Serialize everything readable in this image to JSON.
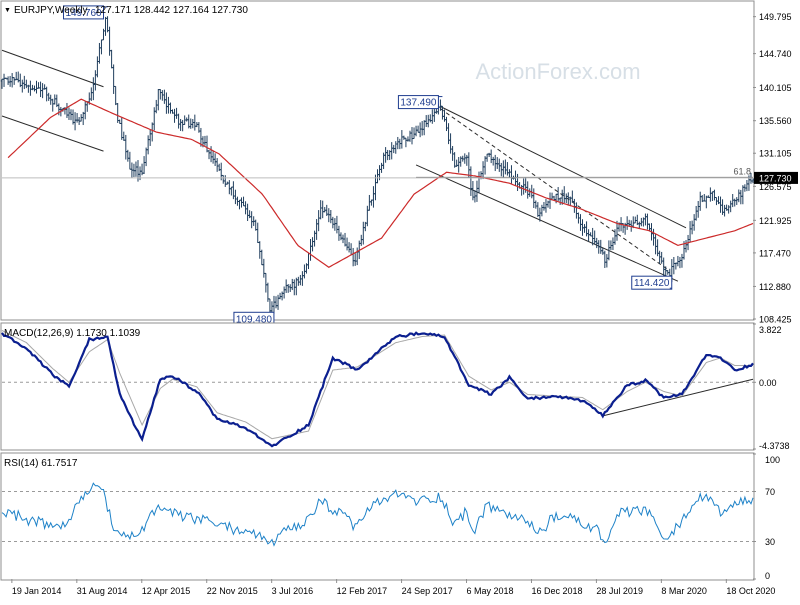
{
  "header": {
    "symbol": "EURJPY,Weekly",
    "ohlc": "127.171 128.442 127.164 127.730",
    "collapse_glyph": "▼"
  },
  "watermark": "ActionForex.com",
  "colors": {
    "price": "#1f3d5c",
    "ma": "#cc2a2a",
    "macd": "#0b1f8f",
    "signal": "#a8a8a8",
    "rsi": "#1e82c8",
    "frame": "#8f8f8f",
    "trend": "#2a2a2a",
    "fib": "#6f6f6f",
    "last_price_bg": "#000000",
    "last_price_text": "#ffffff"
  },
  "chart_data": [
    {
      "type": "candlestick",
      "title": "EURJPY,Weekly",
      "ylim": [
        108.425,
        151.8
      ],
      "y_ticks": [
        "149.795",
        "144.740",
        "140.105",
        "135.560",
        "131.105",
        "126.575",
        "121.925",
        "117.470",
        "112.880",
        "108.425"
      ],
      "last_price": "127.730",
      "price_anchors": [
        [
          "2014-01-06",
          141.0
        ],
        [
          "2014-01-20",
          141.5
        ],
        [
          "2014-03-03",
          140.5
        ],
        [
          "2014-04-28",
          140.0
        ],
        [
          "2014-06-23",
          137.8
        ],
        [
          "2014-08-31",
          135.2
        ],
        [
          "2014-10-20",
          139.0
        ],
        [
          "2014-12-08",
          149.76
        ],
        [
          "2015-01-19",
          136.0
        ],
        [
          "2015-03-02",
          129.0
        ],
        [
          "2015-04-12",
          128.5
        ],
        [
          "2015-06-08",
          139.5
        ],
        [
          "2015-08-17",
          135.5
        ],
        [
          "2015-10-19",
          135.0
        ],
        [
          "2015-11-22",
          131.5
        ],
        [
          "2016-01-11",
          128.0
        ],
        [
          "2016-03-14",
          124.5
        ],
        [
          "2016-05-09",
          121.0
        ],
        [
          "2016-06-27",
          109.48
        ],
        [
          "2016-08-22",
          112.5
        ],
        [
          "2016-10-17",
          114.0
        ],
        [
          "2016-12-19",
          123.5
        ],
        [
          "2017-02-12",
          121.0
        ],
        [
          "2017-04-17",
          116.0
        ],
        [
          "2017-06-05",
          124.0
        ],
        [
          "2017-07-24",
          130.5
        ],
        [
          "2017-09-24",
          133.0
        ],
        [
          "2017-11-13",
          133.8
        ],
        [
          "2018-02-05",
          137.49
        ],
        [
          "2018-03-26",
          129.5
        ],
        [
          "2018-05-06",
          130.5
        ],
        [
          "2018-05-28",
          124.8
        ],
        [
          "2018-07-16",
          131.0
        ],
        [
          "2018-09-10",
          129.0
        ],
        [
          "2018-10-29",
          127.0
        ],
        [
          "2018-12-16",
          125.5
        ],
        [
          "2019-01-07",
          122.5
        ],
        [
          "2019-02-25",
          125.0
        ],
        [
          "2019-04-22",
          125.5
        ],
        [
          "2019-06-10",
          121.0
        ],
        [
          "2019-07-28",
          119.0
        ],
        [
          "2019-08-26",
          116.5
        ],
        [
          "2019-10-14",
          121.0
        ],
        [
          "2019-12-16",
          121.5
        ],
        [
          "2020-01-13",
          122.0
        ],
        [
          "2020-03-08",
          116.2
        ],
        [
          "2020-03-30",
          114.42
        ],
        [
          "2020-05-18",
          117.0
        ],
        [
          "2020-06-15",
          120.5
        ],
        [
          "2020-07-20",
          124.8
        ],
        [
          "2020-08-31",
          125.5
        ],
        [
          "2020-09-28",
          123.5
        ],
        [
          "2020-10-18",
          123.2
        ],
        [
          "2020-11-16",
          124.5
        ],
        [
          "2020-12-21",
          126.5
        ],
        [
          "2021-01-18",
          127.73
        ]
      ],
      "moving_average_anchors": [
        [
          "2014-01-06",
          130.5
        ],
        [
          "2014-06-01",
          136.0
        ],
        [
          "2014-09-15",
          138.5
        ],
        [
          "2015-01-05",
          136.5
        ],
        [
          "2015-06-01",
          134.0
        ],
        [
          "2015-10-01",
          133.0
        ],
        [
          "2016-01-04",
          131.0
        ],
        [
          "2016-06-01",
          125.5
        ],
        [
          "2016-10-01",
          118.5
        ],
        [
          "2017-01-16",
          115.5
        ],
        [
          "2017-04-17",
          117.5
        ],
        [
          "2017-07-17",
          119.5
        ],
        [
          "2017-11-06",
          125.5
        ],
        [
          "2018-02-26",
          128.5
        ],
        [
          "2018-06-04",
          128.0
        ],
        [
          "2018-10-01",
          127.0
        ],
        [
          "2019-02-04",
          125.0
        ],
        [
          "2019-06-03",
          123.5
        ],
        [
          "2019-10-07",
          121.5
        ],
        [
          "2020-01-27",
          120.5
        ],
        [
          "2020-05-04",
          118.5
        ],
        [
          "2020-08-10",
          119.5
        ],
        [
          "2020-11-16",
          120.5
        ],
        [
          "2021-01-18",
          121.5
        ]
      ],
      "annotations": [
        {
          "label": "149.760",
          "date": "2014-12-08",
          "value": 149.76,
          "anchor": "high"
        },
        {
          "label": "109.480",
          "date": "2016-06-27",
          "value": 109.48,
          "anchor": "low"
        },
        {
          "label": "137.490",
          "date": "2018-02-05",
          "value": 137.49,
          "anchor": "high"
        },
        {
          "label": "114.420",
          "date": "2020-03-30",
          "value": 114.42,
          "anchor": "low"
        }
      ],
      "fib_level": {
        "label": "61.8",
        "value": 127.8
      },
      "trendlines": [
        {
          "style": "solid",
          "from": [
            "2013-12-16",
            145.2
          ],
          "to": [
            "2014-12-01",
            140.2
          ]
        },
        {
          "style": "solid",
          "from": [
            "2013-12-16",
            136.2
          ],
          "to": [
            "2014-12-01",
            131.4
          ]
        },
        {
          "style": "solid",
          "from": [
            "2018-02-05",
            137.5
          ],
          "to": [
            "2020-06-01",
            120.9
          ]
        },
        {
          "style": "solid",
          "from": [
            "2017-11-13",
            129.5
          ],
          "to": [
            "2020-05-04",
            113.6
          ]
        },
        {
          "style": "dashed",
          "from": [
            "2018-02-05",
            137.2
          ],
          "to": [
            "2020-03-30",
            115.2
          ]
        }
      ],
      "x_tick_labels": [
        {
          "label": "19 Jan 2014",
          "date": "2014-01-19"
        },
        {
          "label": "31 Aug 2014",
          "date": "2014-08-31"
        },
        {
          "label": "12 Apr 2015",
          "date": "2015-04-12"
        },
        {
          "label": "22 Nov 2015",
          "date": "2015-11-22"
        },
        {
          "label": "3 Jul 2016",
          "date": "2016-07-03"
        },
        {
          "label": "12 Feb 2017",
          "date": "2017-02-12"
        },
        {
          "label": "24 Sep 2017",
          "date": "2017-09-24"
        },
        {
          "label": "6 May 2018",
          "date": "2018-05-06"
        },
        {
          "label": "16 Dec 2018",
          "date": "2018-12-16"
        },
        {
          "label": "28 Jul 2019",
          "date": "2019-07-28"
        },
        {
          "label": "8 Mar 2020",
          "date": "2020-03-08"
        },
        {
          "label": "18 Oct 2020",
          "date": "2020-10-18"
        }
      ],
      "xlim": [
        "2013-12-16",
        "2021-01-18"
      ]
    },
    {
      "type": "line",
      "title": "MACD(12,26,9) 1.1730 1.1039",
      "ylim": [
        -4.3738,
        3.822
      ],
      "y_ticks": [
        {
          "label": "3.822",
          "value": 3.822
        },
        {
          "label": "0.00",
          "value": 0.0
        },
        {
          "label": "-4.3738",
          "value": -4.3738
        }
      ],
      "macd_anchors": [
        [
          "2013-12-16",
          3.2
        ],
        [
          "2014-03-10",
          2.2
        ],
        [
          "2014-06-09",
          0.5
        ],
        [
          "2014-08-04",
          -0.3
        ],
        [
          "2014-10-13",
          2.8
        ],
        [
          "2014-12-15",
          3.0
        ],
        [
          "2015-01-26",
          -0.8
        ],
        [
          "2015-04-13",
          -3.8
        ],
        [
          "2015-06-15",
          0.2
        ],
        [
          "2015-07-27",
          0.4
        ],
        [
          "2015-10-19",
          -0.6
        ],
        [
          "2015-12-28",
          -2.4
        ],
        [
          "2016-04-04",
          -3.0
        ],
        [
          "2016-07-04",
          -4.2
        ],
        [
          "2016-11-07",
          -2.8
        ],
        [
          "2017-01-30",
          1.6
        ],
        [
          "2017-04-24",
          0.8
        ],
        [
          "2017-09-04",
          3.0
        ],
        [
          "2017-12-04",
          3.2
        ],
        [
          "2018-02-19",
          3.0
        ],
        [
          "2018-05-14",
          -0.2
        ],
        [
          "2018-07-30",
          -0.8
        ],
        [
          "2018-10-01",
          0.3
        ],
        [
          "2018-12-03",
          -1.1
        ],
        [
          "2019-03-04",
          -0.9
        ],
        [
          "2019-06-10",
          -1.2
        ],
        [
          "2019-08-19",
          -2.2
        ],
        [
          "2019-11-11",
          -0.2
        ],
        [
          "2020-01-13",
          0.1
        ],
        [
          "2020-03-16",
          -1.0
        ],
        [
          "2020-05-18",
          -0.8
        ],
        [
          "2020-08-10",
          1.8
        ],
        [
          "2020-09-28",
          1.6
        ],
        [
          "2020-11-16",
          0.8
        ],
        [
          "2021-01-18",
          1.173
        ]
      ],
      "signal_anchors": [
        [
          "2013-12-16",
          3.4
        ],
        [
          "2014-03-10",
          2.6
        ],
        [
          "2014-06-09",
          0.9
        ],
        [
          "2014-08-04",
          0.0
        ],
        [
          "2014-10-13",
          2.0
        ],
        [
          "2014-12-15",
          2.8
        ],
        [
          "2015-01-26",
          0.6
        ],
        [
          "2015-04-13",
          -2.8
        ],
        [
          "2015-06-15",
          -0.4
        ],
        [
          "2015-07-27",
          0.2
        ],
        [
          "2015-10-19",
          -0.3
        ],
        [
          "2015-12-28",
          -2.0
        ],
        [
          "2016-04-04",
          -2.6
        ],
        [
          "2016-07-04",
          -3.7
        ],
        [
          "2016-11-07",
          -3.2
        ],
        [
          "2017-01-30",
          0.8
        ],
        [
          "2017-04-24",
          1.0
        ],
        [
          "2017-09-04",
          2.6
        ],
        [
          "2017-12-04",
          3.0
        ],
        [
          "2018-02-19",
          3.1
        ],
        [
          "2018-05-14",
          0.4
        ],
        [
          "2018-07-30",
          -0.5
        ],
        [
          "2018-10-01",
          0.0
        ],
        [
          "2018-12-03",
          -0.8
        ],
        [
          "2019-03-04",
          -0.9
        ],
        [
          "2019-06-10",
          -1.0
        ],
        [
          "2019-08-19",
          -1.8
        ],
        [
          "2019-11-11",
          -0.6
        ],
        [
          "2020-01-13",
          0.0
        ],
        [
          "2020-03-16",
          -0.6
        ],
        [
          "2020-05-18",
          -0.9
        ],
        [
          "2020-08-10",
          1.3
        ],
        [
          "2020-09-28",
          1.6
        ],
        [
          "2020-11-16",
          1.1
        ],
        [
          "2021-01-18",
          1.1039
        ]
      ],
      "trendline": {
        "from": [
          "2019-08-19",
          -2.2
        ],
        "to": [
          "2021-01-18",
          0.2
        ]
      }
    },
    {
      "type": "line",
      "title": "RSI(14) 61.7517",
      "ylim": [
        0,
        100
      ],
      "y_ticks": [
        {
          "label": "100",
          "value": 100
        },
        {
          "label": "70",
          "value": 70
        },
        {
          "label": "30",
          "value": 30
        },
        {
          "label": "0",
          "value": 0
        }
      ],
      "reference_levels": [
        70,
        30
      ],
      "rsi_anchors": [
        [
          "2013-12-16",
          55
        ],
        [
          "2014-03-10",
          48
        ],
        [
          "2014-06-09",
          42
        ],
        [
          "2014-08-04",
          45
        ],
        [
          "2014-09-15",
          65
        ],
        [
          "2014-10-20",
          72
        ],
        [
          "2014-11-17",
          78
        ],
        [
          "2015-01-05",
          40
        ],
        [
          "2015-02-23",
          32
        ],
        [
          "2015-04-13",
          40
        ],
        [
          "2015-06-08",
          58
        ],
        [
          "2015-08-17",
          50
        ],
        [
          "2015-10-19",
          48
        ],
        [
          "2015-12-28",
          44
        ],
        [
          "2016-02-22",
          40
        ],
        [
          "2016-04-25",
          38
        ],
        [
          "2016-06-27",
          28
        ],
        [
          "2016-08-22",
          38
        ],
        [
          "2016-10-17",
          42
        ],
        [
          "2016-12-19",
          62
        ],
        [
          "2017-02-12",
          54
        ],
        [
          "2017-04-17",
          42
        ],
        [
          "2017-06-05",
          56
        ],
        [
          "2017-07-24",
          64
        ],
        [
          "2017-09-24",
          68
        ],
        [
          "2017-11-13",
          62
        ],
        [
          "2018-02-05",
          66
        ],
        [
          "2018-03-26",
          44
        ],
        [
          "2018-05-06",
          54
        ],
        [
          "2018-05-28",
          38
        ],
        [
          "2018-07-16",
          58
        ],
        [
          "2018-09-10",
          54
        ],
        [
          "2018-10-29",
          48
        ],
        [
          "2018-12-16",
          44
        ],
        [
          "2019-01-07",
          36
        ],
        [
          "2019-02-25",
          48
        ],
        [
          "2019-04-22",
          50
        ],
        [
          "2019-06-10",
          44
        ],
        [
          "2019-07-28",
          40
        ],
        [
          "2019-08-26",
          28
        ],
        [
          "2019-10-14",
          52
        ],
        [
          "2019-12-16",
          54
        ],
        [
          "2020-01-13",
          56
        ],
        [
          "2020-03-08",
          36
        ],
        [
          "2020-03-30",
          30
        ],
        [
          "2020-05-18",
          48
        ],
        [
          "2020-06-15",
          56
        ],
        [
          "2020-07-20",
          66
        ],
        [
          "2020-08-31",
          62
        ],
        [
          "2020-09-28",
          54
        ],
        [
          "2020-10-18",
          52
        ],
        [
          "2020-11-16",
          58
        ],
        [
          "2020-12-21",
          62
        ],
        [
          "2021-01-18",
          61.75
        ]
      ]
    }
  ]
}
